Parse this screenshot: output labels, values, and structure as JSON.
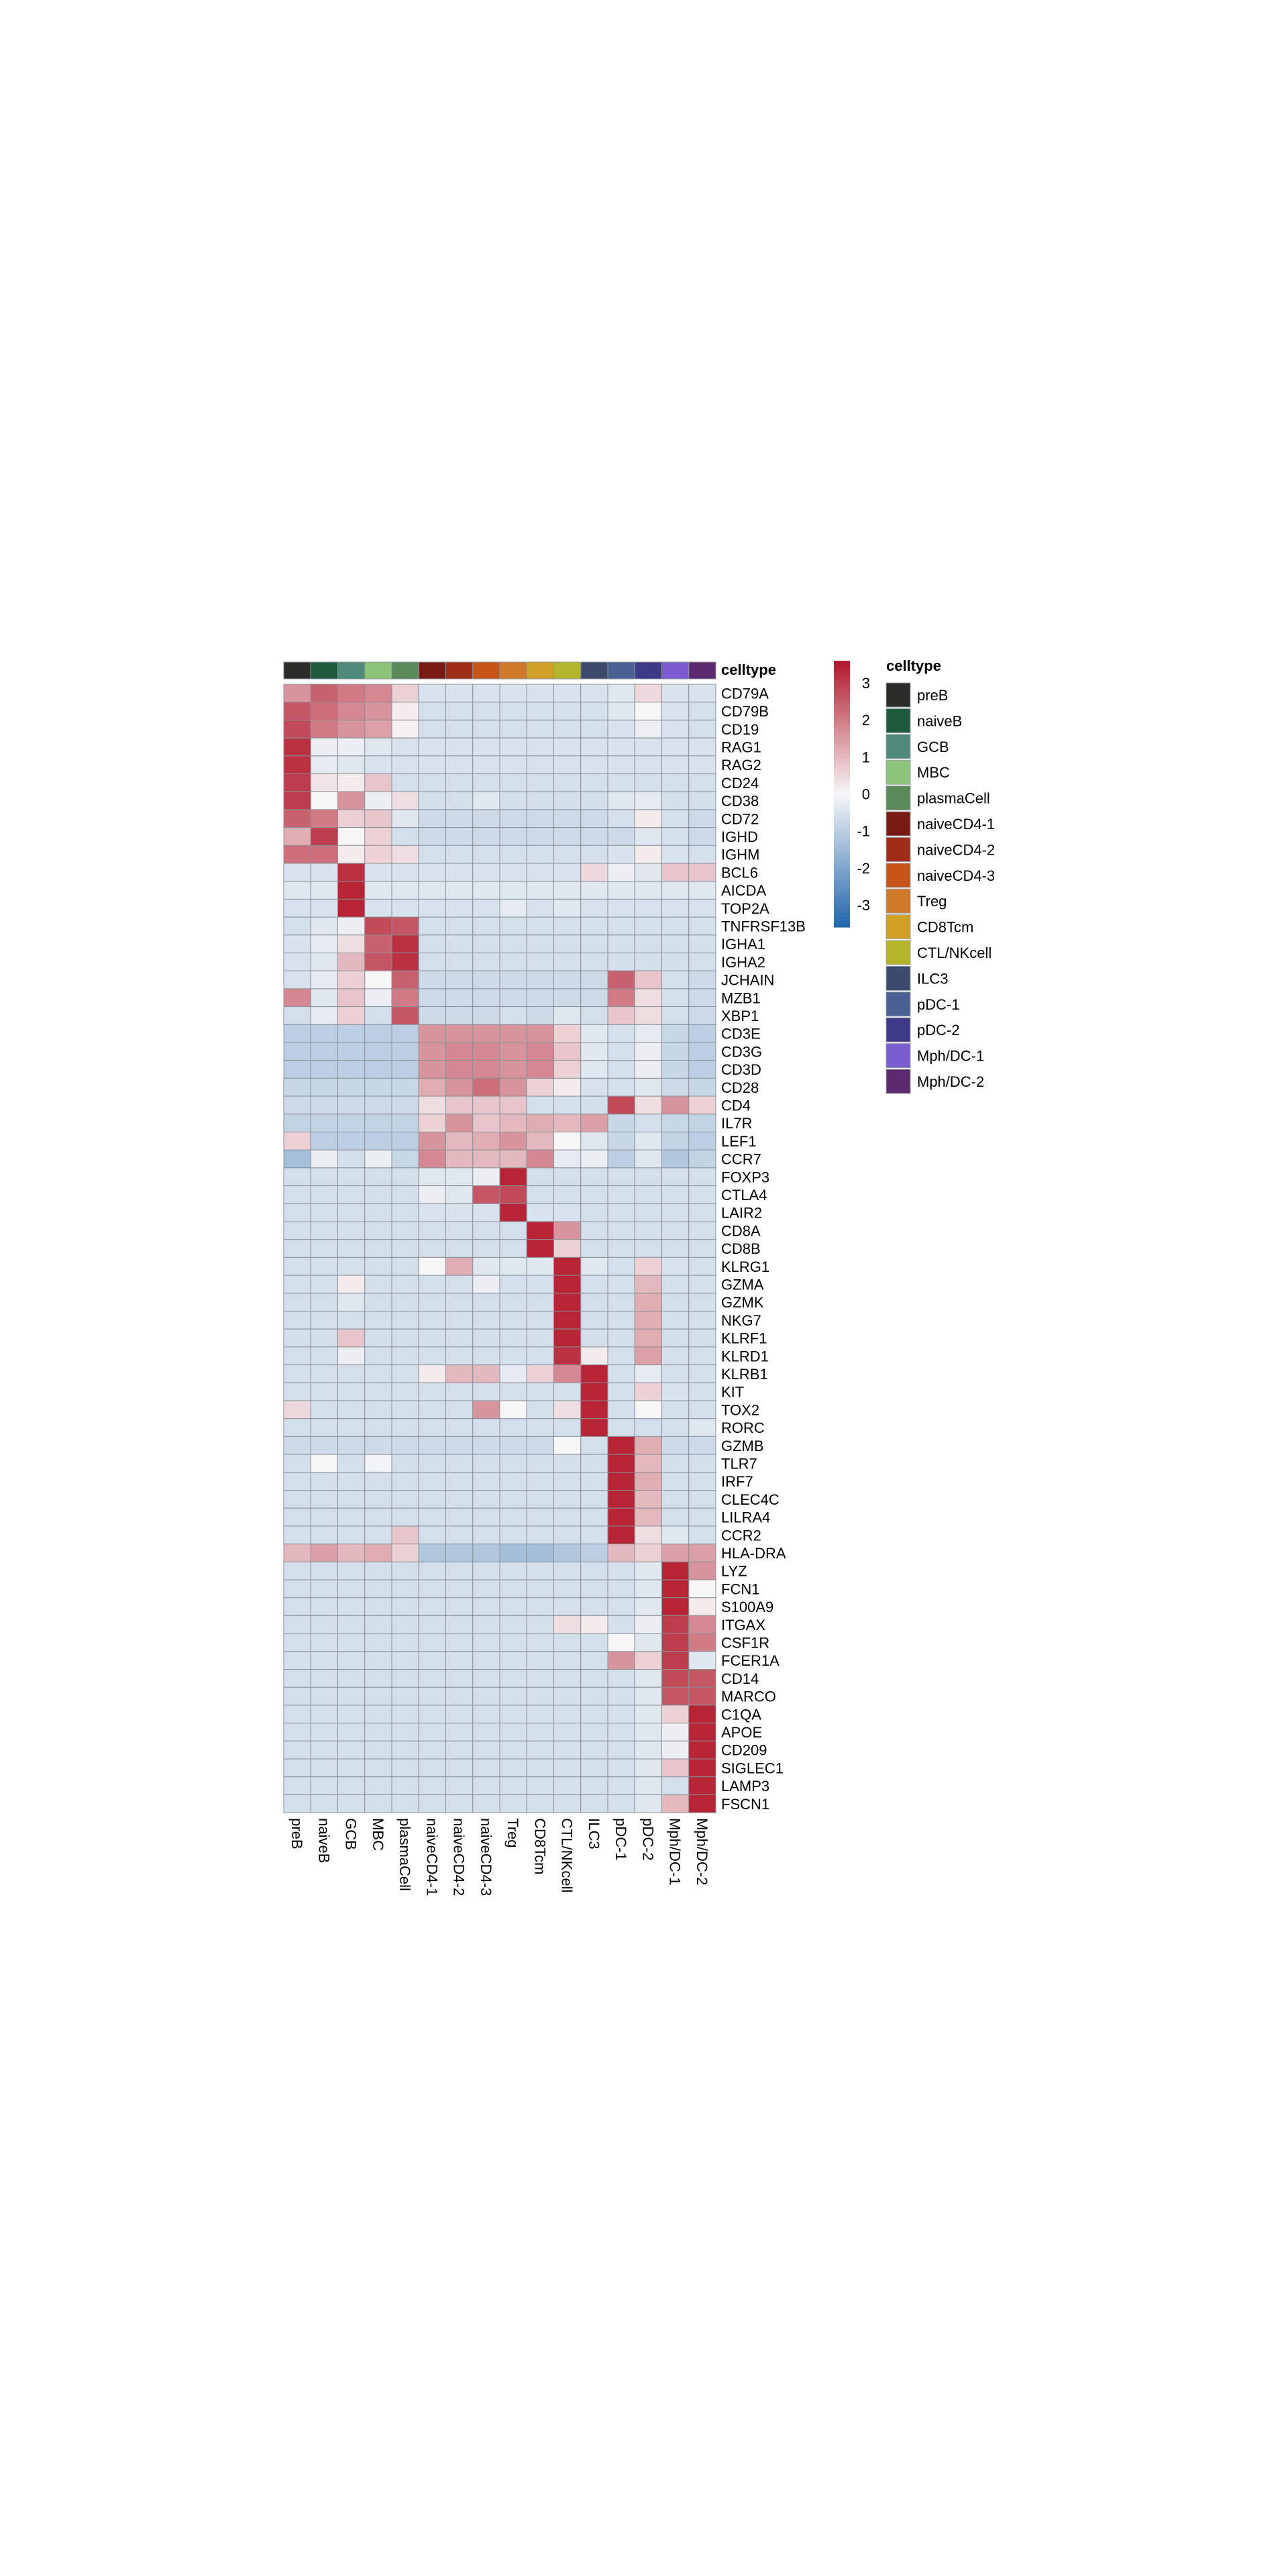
{
  "chart_data": {
    "type": "heatmap",
    "title": "",
    "annotation_label": "celltype",
    "legend_title": "celltype",
    "colorbar": {
      "ticks": [
        3,
        2,
        1,
        0,
        -1,
        -2,
        -3
      ],
      "range": [
        -3.6,
        3.6
      ],
      "colors": {
        "high": "#b2182b",
        "mid": "#f7f7f7",
        "low": "#2166ac"
      }
    },
    "columns": [
      "preB",
      "naiveB",
      "GCB",
      "MBC",
      "plasmaCell",
      "naiveCD4-1",
      "naiveCD4-2",
      "naiveCD4-3",
      "Treg",
      "CD8Tcm",
      "CTL/NKcell",
      "ILC3",
      "pDC-1",
      "pDC-2",
      "Mph/DC-1",
      "Mph/DC-2"
    ],
    "column_colors": [
      "#2b2b28",
      "#1e5a3c",
      "#4f8a78",
      "#8cc47a",
      "#5a8a5a",
      "#7a1a14",
      "#a02d18",
      "#c85518",
      "#d0782a",
      "#d1a027",
      "#b5b52b",
      "#3d4a6e",
      "#4a5f92",
      "#3c3a86",
      "#7b5bd0",
      "#5c2a6e"
    ],
    "rows": [
      "CD79A",
      "CD79B",
      "CD19",
      "RAG1",
      "RAG2",
      "CD24",
      "CD38",
      "CD72",
      "IGHD",
      "IGHM",
      "BCL6",
      "AICDA",
      "TOP2A",
      "TNFRSF13B",
      "IGHA1",
      "IGHA2",
      "JCHAIN",
      "MZB1",
      "XBP1",
      "CD3E",
      "CD3G",
      "CD3D",
      "CD28",
      "CD4",
      "IL7R",
      "LEF1",
      "CCR7",
      "FOXP3",
      "CTLA4",
      "LAIR2",
      "CD8A",
      "CD8B",
      "KLRG1",
      "GZMA",
      "GZMK",
      "NKG7",
      "KLRF1",
      "KLRD1",
      "KLRB1",
      "KIT",
      "TOX2",
      "RORC",
      "GZMB",
      "TLR7",
      "IRF7",
      "CLEC4C",
      "LILRA4",
      "CCR2",
      "HLA-DRA",
      "LYZ",
      "FCN1",
      "S100A9",
      "ITGAX",
      "CSF1R",
      "FCER1A",
      "CD14",
      "MARCO",
      "C1QA",
      "APOE",
      "CD209",
      "SIGLEC1",
      "LAMP3",
      "FSCN1"
    ],
    "values": [
      [
        1.6,
        2.4,
        2.0,
        1.8,
        0.6,
        -0.5,
        -0.5,
        -0.5,
        -0.5,
        -0.5,
        -0.5,
        -0.5,
        -0.4,
        0.5,
        -0.5,
        -0.5
      ],
      [
        2.6,
        2.2,
        1.8,
        1.6,
        0.2,
        -0.6,
        -0.6,
        -0.6,
        -0.6,
        -0.6,
        -0.6,
        -0.6,
        -0.4,
        0.0,
        -0.5,
        -0.6
      ],
      [
        2.8,
        2.0,
        1.6,
        1.4,
        0.1,
        -0.6,
        -0.6,
        -0.6,
        -0.6,
        -0.6,
        -0.6,
        -0.6,
        -0.5,
        -0.2,
        -0.5,
        -0.6
      ],
      [
        3.2,
        -0.2,
        -0.2,
        -0.4,
        -0.5,
        -0.5,
        -0.5,
        -0.5,
        -0.5,
        -0.5,
        -0.5,
        -0.5,
        -0.5,
        -0.5,
        -0.5,
        -0.5
      ],
      [
        3.2,
        -0.3,
        -0.4,
        -0.5,
        -0.5,
        -0.5,
        -0.5,
        -0.5,
        -0.5,
        -0.5,
        -0.5,
        -0.5,
        -0.5,
        -0.5,
        -0.5,
        -0.5
      ],
      [
        3.0,
        0.3,
        0.2,
        0.8,
        -0.6,
        -0.6,
        -0.6,
        -0.6,
        -0.6,
        -0.6,
        -0.6,
        -0.6,
        -0.6,
        -0.6,
        -0.6,
        -0.6
      ],
      [
        3.0,
        0.0,
        1.6,
        -0.2,
        0.4,
        -0.6,
        -0.6,
        -0.4,
        -0.6,
        -0.6,
        -0.6,
        -0.6,
        -0.4,
        -0.3,
        -0.6,
        -0.6
      ],
      [
        2.4,
        2.0,
        0.6,
        0.8,
        -0.4,
        -0.7,
        -0.7,
        -0.7,
        -0.7,
        -0.7,
        -0.7,
        -0.7,
        -0.6,
        0.2,
        -0.6,
        -0.7
      ],
      [
        1.2,
        3.0,
        0.0,
        0.6,
        -0.6,
        -0.7,
        -0.7,
        -0.7,
        -0.7,
        -0.7,
        -0.7,
        -0.7,
        -0.7,
        -0.4,
        -0.6,
        -0.7
      ],
      [
        2.2,
        2.2,
        0.2,
        0.6,
        0.4,
        -0.6,
        -0.6,
        -0.6,
        -0.6,
        -0.6,
        -0.6,
        -0.6,
        -0.5,
        0.2,
        -0.5,
        -0.6
      ],
      [
        -0.5,
        -0.5,
        3.2,
        -0.5,
        -0.5,
        -0.5,
        -0.5,
        -0.5,
        -0.5,
        -0.5,
        -0.5,
        0.5,
        -0.2,
        -0.4,
        0.8,
        0.8
      ],
      [
        -0.4,
        -0.4,
        3.4,
        -0.4,
        -0.4,
        -0.4,
        -0.4,
        -0.4,
        -0.4,
        -0.4,
        -0.4,
        -0.4,
        -0.4,
        -0.4,
        -0.4,
        -0.4
      ],
      [
        -0.5,
        -0.5,
        3.4,
        -0.5,
        -0.5,
        -0.5,
        -0.5,
        -0.5,
        -0.3,
        -0.5,
        -0.4,
        -0.5,
        -0.5,
        -0.5,
        -0.5,
        -0.5
      ],
      [
        -0.6,
        -0.4,
        -0.2,
        2.8,
        2.6,
        -0.6,
        -0.6,
        -0.6,
        -0.6,
        -0.6,
        -0.6,
        -0.6,
        -0.6,
        -0.6,
        -0.6,
        -0.6
      ],
      [
        -0.5,
        -0.3,
        0.4,
        2.4,
        3.2,
        -0.6,
        -0.6,
        -0.6,
        -0.6,
        -0.6,
        -0.6,
        -0.6,
        -0.6,
        -0.6,
        -0.6,
        -0.6
      ],
      [
        -0.5,
        -0.4,
        1.0,
        2.6,
        3.2,
        -0.6,
        -0.6,
        -0.6,
        -0.6,
        -0.6,
        -0.6,
        -0.6,
        -0.6,
        -0.6,
        -0.6,
        -0.6
      ],
      [
        -0.5,
        -0.3,
        0.6,
        0.0,
        2.4,
        -0.7,
        -0.7,
        -0.7,
        -0.7,
        -0.7,
        -0.7,
        -0.7,
        2.4,
        0.8,
        -0.6,
        -0.7
      ],
      [
        1.8,
        -0.4,
        0.8,
        -0.2,
        2.0,
        -0.7,
        -0.7,
        -0.7,
        -0.7,
        -0.7,
        -0.7,
        -0.7,
        2.0,
        0.4,
        -0.6,
        -0.7
      ],
      [
        -0.6,
        -0.3,
        0.6,
        -0.6,
        2.6,
        -0.7,
        -0.7,
        -0.7,
        -0.6,
        -0.7,
        -0.4,
        -0.6,
        0.8,
        0.4,
        -0.6,
        -0.7
      ],
      [
        -1.0,
        -1.0,
        -1.0,
        -1.0,
        -1.0,
        1.6,
        1.6,
        1.6,
        1.6,
        1.6,
        0.6,
        -0.4,
        -0.6,
        -0.3,
        -0.8,
        -1.0
      ],
      [
        -1.0,
        -1.0,
        -1.0,
        -1.0,
        -1.0,
        1.6,
        1.8,
        1.8,
        1.6,
        1.8,
        0.8,
        -0.4,
        -0.6,
        -0.2,
        -0.8,
        -1.0
      ],
      [
        -1.0,
        -1.0,
        -1.0,
        -1.0,
        -1.0,
        1.6,
        1.8,
        1.8,
        1.6,
        1.8,
        0.6,
        -0.4,
        -0.6,
        -0.2,
        -0.8,
        -1.0
      ],
      [
        -0.8,
        -0.8,
        -0.8,
        -0.8,
        -0.8,
        1.2,
        1.6,
        2.2,
        1.6,
        0.6,
        0.2,
        -0.5,
        -0.6,
        -0.4,
        -0.7,
        -0.8
      ],
      [
        -0.7,
        -0.7,
        -0.7,
        -0.7,
        -0.7,
        0.4,
        0.8,
        0.8,
        0.8,
        -0.6,
        -0.6,
        -0.6,
        2.8,
        0.4,
        1.6,
        0.6
      ],
      [
        -0.9,
        -0.9,
        -0.9,
        -0.9,
        -0.9,
        0.6,
        1.6,
        0.8,
        1.0,
        1.2,
        1.0,
        1.4,
        -0.8,
        -0.6,
        -0.8,
        -0.9
      ],
      [
        0.6,
        -1.0,
        -1.0,
        -1.0,
        -1.0,
        1.6,
        1.0,
        1.2,
        1.6,
        1.0,
        0.0,
        -0.4,
        -0.8,
        -0.4,
        -0.9,
        -1.0
      ],
      [
        -1.4,
        -0.2,
        -0.6,
        -0.2,
        -0.8,
        1.8,
        1.0,
        1.0,
        1.0,
        1.8,
        -0.3,
        -0.2,
        -1.0,
        -0.4,
        -1.2,
        -0.9
      ],
      [
        -0.6,
        -0.6,
        -0.6,
        -0.6,
        -0.6,
        -0.4,
        -0.4,
        -0.2,
        3.4,
        -0.6,
        -0.6,
        -0.6,
        -0.6,
        -0.6,
        -0.6,
        -0.6
      ],
      [
        -0.6,
        -0.6,
        -0.6,
        -0.6,
        -0.6,
        -0.2,
        -0.4,
        2.6,
        2.8,
        -0.6,
        -0.6,
        -0.6,
        -0.6,
        -0.6,
        -0.6,
        -0.6
      ],
      [
        -0.6,
        -0.6,
        -0.6,
        -0.6,
        -0.6,
        -0.5,
        -0.5,
        -0.5,
        3.4,
        -0.5,
        -0.5,
        -0.6,
        -0.6,
        -0.6,
        -0.6,
        -0.6
      ],
      [
        -0.6,
        -0.6,
        -0.6,
        -0.6,
        -0.6,
        -0.6,
        -0.6,
        -0.6,
        -0.6,
        3.4,
        1.6,
        -0.6,
        -0.6,
        -0.6,
        -0.6,
        -0.6
      ],
      [
        -0.6,
        -0.6,
        -0.6,
        -0.6,
        -0.6,
        -0.6,
        -0.6,
        -0.6,
        -0.6,
        3.4,
        0.6,
        -0.6,
        -0.6,
        -0.6,
        -0.6,
        -0.6
      ],
      [
        -0.6,
        -0.6,
        -0.6,
        -0.6,
        -0.6,
        0.0,
        1.2,
        -0.4,
        -0.4,
        -0.4,
        3.4,
        -0.4,
        -0.6,
        0.6,
        -0.5,
        -0.6
      ],
      [
        -0.6,
        -0.6,
        0.2,
        -0.6,
        -0.6,
        -0.6,
        -0.6,
        -0.2,
        -0.6,
        -0.6,
        3.4,
        -0.6,
        -0.6,
        1.0,
        -0.6,
        -0.6
      ],
      [
        -0.6,
        -0.6,
        -0.4,
        -0.6,
        -0.6,
        -0.6,
        -0.6,
        -0.6,
        -0.6,
        -0.6,
        3.4,
        -0.6,
        -0.6,
        1.2,
        -0.6,
        -0.6
      ],
      [
        -0.6,
        -0.6,
        -0.6,
        -0.6,
        -0.6,
        -0.6,
        -0.6,
        -0.6,
        -0.6,
        -0.6,
        3.4,
        -0.6,
        -0.6,
        1.2,
        -0.6,
        -0.6
      ],
      [
        -0.6,
        -0.6,
        0.8,
        -0.6,
        -0.6,
        -0.6,
        -0.6,
        -0.6,
        -0.6,
        -0.6,
        3.4,
        -0.6,
        -0.6,
        1.2,
        -0.6,
        -0.6
      ],
      [
        -0.6,
        -0.6,
        -0.2,
        -0.6,
        -0.6,
        -0.6,
        -0.6,
        -0.6,
        -0.6,
        -0.6,
        3.2,
        0.2,
        -0.6,
        1.4,
        -0.6,
        -0.6
      ],
      [
        -0.6,
        -0.6,
        -0.6,
        -0.6,
        -0.6,
        0.2,
        1.0,
        1.0,
        -0.3,
        0.6,
        1.8,
        3.4,
        -0.6,
        -0.3,
        -0.6,
        -0.6
      ],
      [
        -0.6,
        -0.6,
        -0.6,
        -0.6,
        -0.6,
        -0.6,
        -0.6,
        -0.6,
        -0.6,
        -0.6,
        -0.6,
        3.4,
        -0.6,
        0.6,
        -0.5,
        -0.6
      ],
      [
        0.5,
        -0.6,
        -0.6,
        -0.6,
        -0.6,
        -0.6,
        -0.6,
        1.6,
        0.0,
        -0.6,
        0.4,
        3.4,
        -0.6,
        0.0,
        -0.6,
        -0.6
      ],
      [
        -0.6,
        -0.6,
        -0.6,
        -0.6,
        -0.6,
        -0.6,
        -0.6,
        -0.6,
        -0.6,
        -0.6,
        -0.6,
        3.4,
        -0.6,
        -0.6,
        -0.6,
        -0.4
      ],
      [
        -0.7,
        -0.7,
        -0.7,
        -0.7,
        -0.7,
        -0.7,
        -0.7,
        -0.7,
        -0.7,
        -0.7,
        0.0,
        -0.6,
        3.4,
        1.2,
        -0.7,
        -0.7
      ],
      [
        -0.6,
        0.0,
        -0.6,
        -0.1,
        -0.6,
        -0.6,
        -0.6,
        -0.6,
        -0.6,
        -0.6,
        -0.6,
        -0.6,
        3.4,
        1.0,
        -0.6,
        -0.6
      ],
      [
        -0.6,
        -0.6,
        -0.6,
        -0.6,
        -0.6,
        -0.6,
        -0.6,
        -0.6,
        -0.6,
        -0.6,
        -0.6,
        -0.6,
        3.4,
        1.2,
        -0.6,
        -0.6
      ],
      [
        -0.6,
        -0.6,
        -0.6,
        -0.6,
        -0.6,
        -0.6,
        -0.6,
        -0.6,
        -0.6,
        -0.6,
        -0.6,
        -0.6,
        3.4,
        1.0,
        -0.6,
        -0.6
      ],
      [
        -0.6,
        -0.6,
        -0.6,
        -0.6,
        -0.6,
        -0.6,
        -0.6,
        -0.6,
        -0.6,
        -0.6,
        -0.6,
        -0.6,
        3.4,
        1.0,
        -0.6,
        -0.6
      ],
      [
        -0.6,
        -0.6,
        -0.6,
        -0.6,
        0.8,
        -0.6,
        -0.6,
        -0.6,
        -0.6,
        -0.6,
        -0.6,
        -0.6,
        3.4,
        0.4,
        -0.4,
        -0.6
      ],
      [
        1.0,
        1.4,
        1.0,
        1.2,
        0.6,
        -1.2,
        -1.2,
        -1.2,
        -1.4,
        -1.4,
        -1.2,
        -1.0,
        1.0,
        0.6,
        1.4,
        1.4
      ],
      [
        -0.6,
        -0.6,
        -0.6,
        -0.6,
        -0.6,
        -0.6,
        -0.6,
        -0.6,
        -0.6,
        -0.6,
        -0.6,
        -0.6,
        -0.6,
        -0.4,
        3.4,
        1.6
      ],
      [
        -0.6,
        -0.6,
        -0.6,
        -0.6,
        -0.6,
        -0.6,
        -0.6,
        -0.6,
        -0.6,
        -0.6,
        -0.6,
        -0.6,
        -0.6,
        -0.4,
        3.4,
        0.0
      ],
      [
        -0.6,
        -0.6,
        -0.6,
        -0.6,
        -0.6,
        -0.6,
        -0.6,
        -0.6,
        -0.6,
        -0.6,
        -0.6,
        -0.6,
        -0.6,
        -0.4,
        3.4,
        0.2
      ],
      [
        -0.6,
        -0.6,
        -0.6,
        -0.6,
        -0.6,
        -0.6,
        -0.6,
        -0.6,
        -0.6,
        -0.6,
        0.4,
        0.2,
        -0.6,
        -0.2,
        3.0,
        1.8
      ],
      [
        -0.6,
        -0.6,
        -0.6,
        -0.6,
        -0.6,
        -0.6,
        -0.6,
        -0.6,
        -0.6,
        -0.6,
        -0.6,
        -0.6,
        0.0,
        -0.4,
        3.0,
        2.0
      ],
      [
        -0.6,
        -0.6,
        -0.6,
        -0.6,
        -0.6,
        -0.6,
        -0.6,
        -0.6,
        -0.6,
        -0.6,
        -0.6,
        -0.6,
        1.6,
        0.6,
        3.0,
        -0.4
      ],
      [
        -0.6,
        -0.6,
        -0.6,
        -0.6,
        -0.6,
        -0.6,
        -0.6,
        -0.6,
        -0.6,
        -0.6,
        -0.6,
        -0.6,
        -0.6,
        -0.4,
        2.8,
        2.6
      ],
      [
        -0.6,
        -0.6,
        -0.6,
        -0.6,
        -0.6,
        -0.6,
        -0.6,
        -0.6,
        -0.6,
        -0.6,
        -0.6,
        -0.6,
        -0.6,
        -0.4,
        2.6,
        2.6
      ],
      [
        -0.6,
        -0.6,
        -0.6,
        -0.6,
        -0.6,
        -0.6,
        -0.6,
        -0.6,
        -0.6,
        -0.6,
        -0.6,
        -0.6,
        -0.6,
        -0.4,
        0.6,
        3.4
      ],
      [
        -0.6,
        -0.6,
        -0.6,
        -0.6,
        -0.6,
        -0.6,
        -0.6,
        -0.6,
        -0.6,
        -0.6,
        -0.6,
        -0.6,
        -0.6,
        -0.4,
        -0.2,
        3.4
      ],
      [
        -0.6,
        -0.6,
        -0.6,
        -0.6,
        -0.6,
        -0.6,
        -0.6,
        -0.6,
        -0.6,
        -0.6,
        -0.6,
        -0.6,
        -0.6,
        -0.4,
        -0.2,
        3.4
      ],
      [
        -0.6,
        -0.6,
        -0.6,
        -0.6,
        -0.6,
        -0.6,
        -0.6,
        -0.6,
        -0.6,
        -0.6,
        -0.6,
        -0.6,
        -0.6,
        -0.4,
        0.8,
        3.4
      ],
      [
        -0.6,
        -0.6,
        -0.6,
        -0.6,
        -0.6,
        -0.6,
        -0.6,
        -0.6,
        -0.6,
        -0.6,
        -0.6,
        -0.6,
        -0.6,
        -0.4,
        -0.6,
        3.4
      ],
      [
        -0.6,
        -0.6,
        -0.6,
        -0.6,
        -0.6,
        -0.6,
        -0.6,
        -0.6,
        -0.6,
        -0.6,
        -0.6,
        -0.6,
        -0.6,
        -0.4,
        1.0,
        3.4
      ]
    ]
  }
}
